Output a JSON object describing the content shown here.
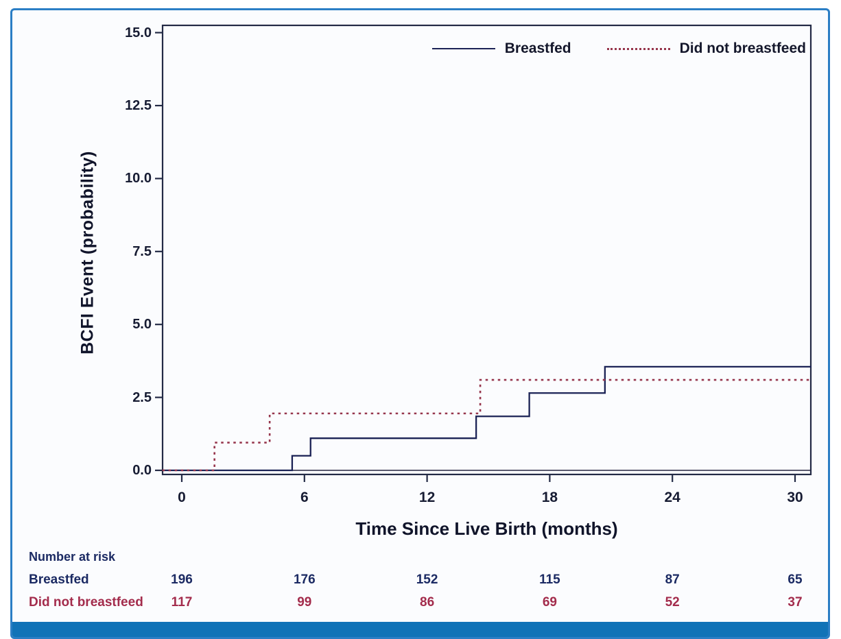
{
  "colors": {
    "outer_border": "#2b7ec5",
    "bottom_bar": "#1173b7",
    "frame_line": "#232a45",
    "baseline_gray": "#5a5a6e",
    "breastfed_line": "#1b2255",
    "not_breastfed_line": "#96354c",
    "breastfed_text": "#1b2a63",
    "not_breastfed_text": "#a32c4c",
    "tick_text": "#171c33"
  },
  "chart_data": {
    "type": "line",
    "subtype": "kaplan-meier-step",
    "title": "",
    "xlabel": "Time Since Live Birth (months)",
    "ylabel": "BCFI Event (probability)",
    "xlim": [
      -0.95,
      30.8
    ],
    "ylim": [
      -0.15,
      15.25
    ],
    "grid": false,
    "legend_position": "top-right-inside",
    "xticks": [
      {
        "value": 0,
        "label": "0"
      },
      {
        "value": 6,
        "label": "6"
      },
      {
        "value": 12,
        "label": "12"
      },
      {
        "value": 18,
        "label": "18"
      },
      {
        "value": 24,
        "label": "24"
      },
      {
        "value": 30,
        "label": "30"
      }
    ],
    "yticks": [
      {
        "value": 0,
        "label": "0.0"
      },
      {
        "value": 2.5,
        "label": "2.5"
      },
      {
        "value": 5,
        "label": "5.0"
      },
      {
        "value": 7.5,
        "label": "7.5"
      },
      {
        "value": 10,
        "label": "10.0"
      },
      {
        "value": 12.5,
        "label": "12.5"
      },
      {
        "value": 15,
        "label": "15.0"
      }
    ],
    "series": [
      {
        "name": "Breastfed",
        "style": "solid",
        "color": "#1b2255",
        "start_y": 0,
        "steps": [
          [
            5.4,
            0.5
          ],
          [
            6.3,
            1.1
          ],
          [
            14.4,
            1.85
          ],
          [
            17.0,
            2.65
          ],
          [
            20.7,
            3.55
          ]
        ],
        "end_x": 30.8
      },
      {
        "name": "Did not breastfeed",
        "style": "dashed",
        "color": "#96354c",
        "start_y": 0,
        "steps": [
          [
            1.6,
            0.95
          ],
          [
            4.3,
            1.95
          ],
          [
            14.6,
            3.1
          ]
        ],
        "end_x": 30.8
      }
    ],
    "risk_table": {
      "title": "Number at risk",
      "times": [
        0,
        6,
        12,
        18,
        24,
        30
      ],
      "rows": [
        {
          "label": "Breastfed",
          "color": "#1b2a63",
          "values": [
            196,
            176,
            152,
            115,
            87,
            65
          ]
        },
        {
          "label": "Did not breastfeed",
          "color": "#a32c4c",
          "values": [
            117,
            99,
            86,
            69,
            52,
            37
          ]
        }
      ]
    }
  }
}
